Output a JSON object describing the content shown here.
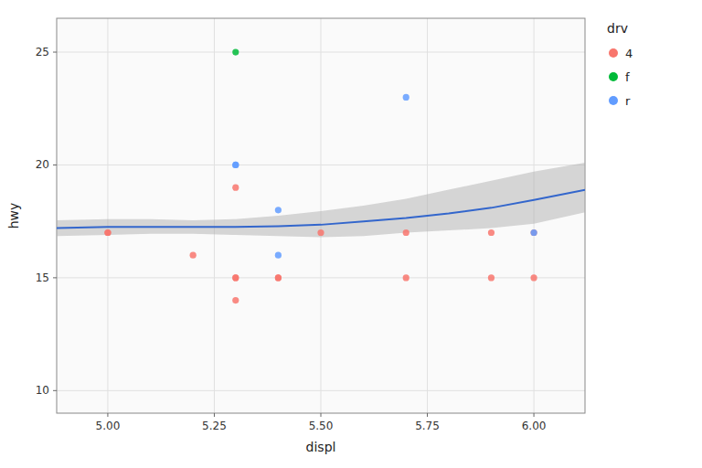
{
  "chart_data": {
    "type": "scatter",
    "xlabel": "displ",
    "ylabel": "hwy",
    "xlim": [
      4.88,
      6.12
    ],
    "ylim": [
      9.0,
      26.5
    ],
    "xticks": [
      {
        "value": 5.0,
        "label": "5.00"
      },
      5.25,
      {
        "value": 5.5,
        "label": "5.50"
      },
      5.75,
      {
        "value": 6.0,
        "label": "6.00"
      }
    ],
    "yticks": [
      10,
      15,
      20,
      25
    ],
    "grid": true,
    "legend": "right",
    "legend_title": "drv",
    "series": [
      {
        "name": "4",
        "type": "scatter",
        "marker": "circle",
        "color": "#F8766D",
        "x": [
          5.0,
          5.0,
          5.2,
          5.3,
          5.3,
          5.3,
          5.3,
          5.4,
          5.4,
          5.5,
          5.7,
          5.7,
          6.0,
          6.0,
          5.9,
          5.9
        ],
        "values": [
          17,
          17,
          16,
          15,
          15,
          14,
          19,
          15,
          15,
          17,
          17,
          15,
          15,
          17,
          17,
          15
        ]
      },
      {
        "name": "f",
        "type": "scatter",
        "marker": "circle",
        "color": "#00BA38",
        "x": [
          5.3
        ],
        "values": [
          25
        ]
      },
      {
        "name": "r",
        "type": "scatter",
        "marker": "circle",
        "color": "#619CFF",
        "x": [
          5.3,
          5.3,
          5.4,
          5.4,
          5.7,
          6.0
        ],
        "values": [
          20,
          20,
          18,
          16,
          23,
          17
        ]
      },
      {
        "type": "line",
        "line_style": "solid",
        "color": "#3366CC",
        "x": [
          4.88,
          5.0,
          5.1,
          5.2,
          5.3,
          5.4,
          5.5,
          5.6,
          5.7,
          5.8,
          5.9,
          6.0,
          6.12
        ],
        "values": [
          17.2,
          17.25,
          17.25,
          17.25,
          17.25,
          17.28,
          17.35,
          17.5,
          17.65,
          17.85,
          18.1,
          18.45,
          18.9
        ]
      },
      {
        "type": "band",
        "color": "#B0B0B0",
        "x": [
          4.88,
          5.0,
          5.1,
          5.2,
          5.3,
          5.4,
          5.5,
          5.6,
          5.7,
          5.8,
          5.9,
          6.0,
          6.12
        ],
        "lower": [
          16.85,
          16.9,
          16.95,
          16.95,
          16.9,
          16.85,
          16.8,
          16.85,
          17.0,
          17.1,
          17.2,
          17.4,
          17.9
        ],
        "upper": [
          17.55,
          17.6,
          17.6,
          17.55,
          17.6,
          17.75,
          17.95,
          18.2,
          18.5,
          18.9,
          19.3,
          19.7,
          20.1
        ]
      }
    ]
  }
}
